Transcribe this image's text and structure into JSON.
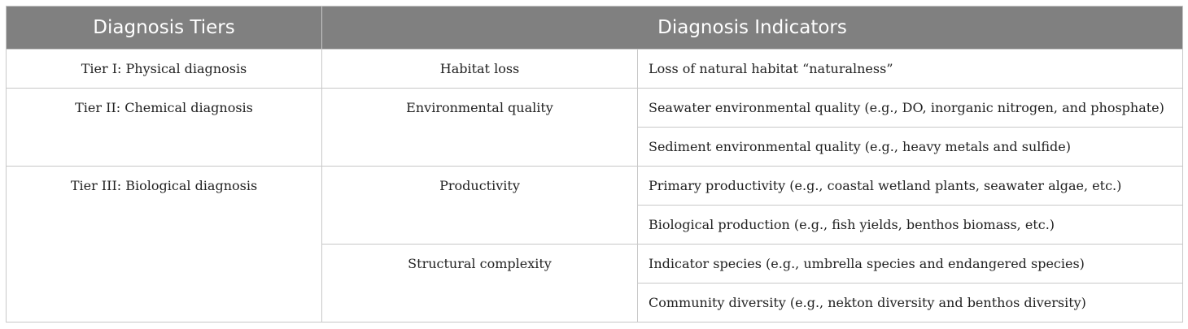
{
  "headers": {
    "tiers": "Diagnosis Tiers",
    "indicators": "Diagnosis Indicators"
  },
  "tiers": [
    {
      "label": "Tier I: Physical diagnosis",
      "groups": [
        {
          "category": "Habitat loss",
          "indicators": [
            "Loss of natural habitat “naturalness”"
          ]
        }
      ]
    },
    {
      "label": "Tier II: Chemical diagnosis",
      "groups": [
        {
          "category": "Environmental quality",
          "indicators": [
            "Seawater environmental quality (e.g., DO, inorganic nitrogen, and phosphate)",
            "Sediment environmental quality (e.g., heavy metals and sulfide)"
          ]
        }
      ]
    },
    {
      "label": "Tier III: Biological diagnosis",
      "groups": [
        {
          "category": "Productivity",
          "indicators": [
            "Primary productivity (e.g., coastal wetland plants, seawater algae, etc.)",
            "Biological production (e.g., fish yields, benthos biomass, etc.)"
          ]
        },
        {
          "category": "Structural complexity",
          "indicators": [
            "Indicator species (e.g., umbrella species and endangered species)",
            "Community diversity (e.g., nekton diversity and benthos diversity)"
          ]
        }
      ]
    }
  ]
}
